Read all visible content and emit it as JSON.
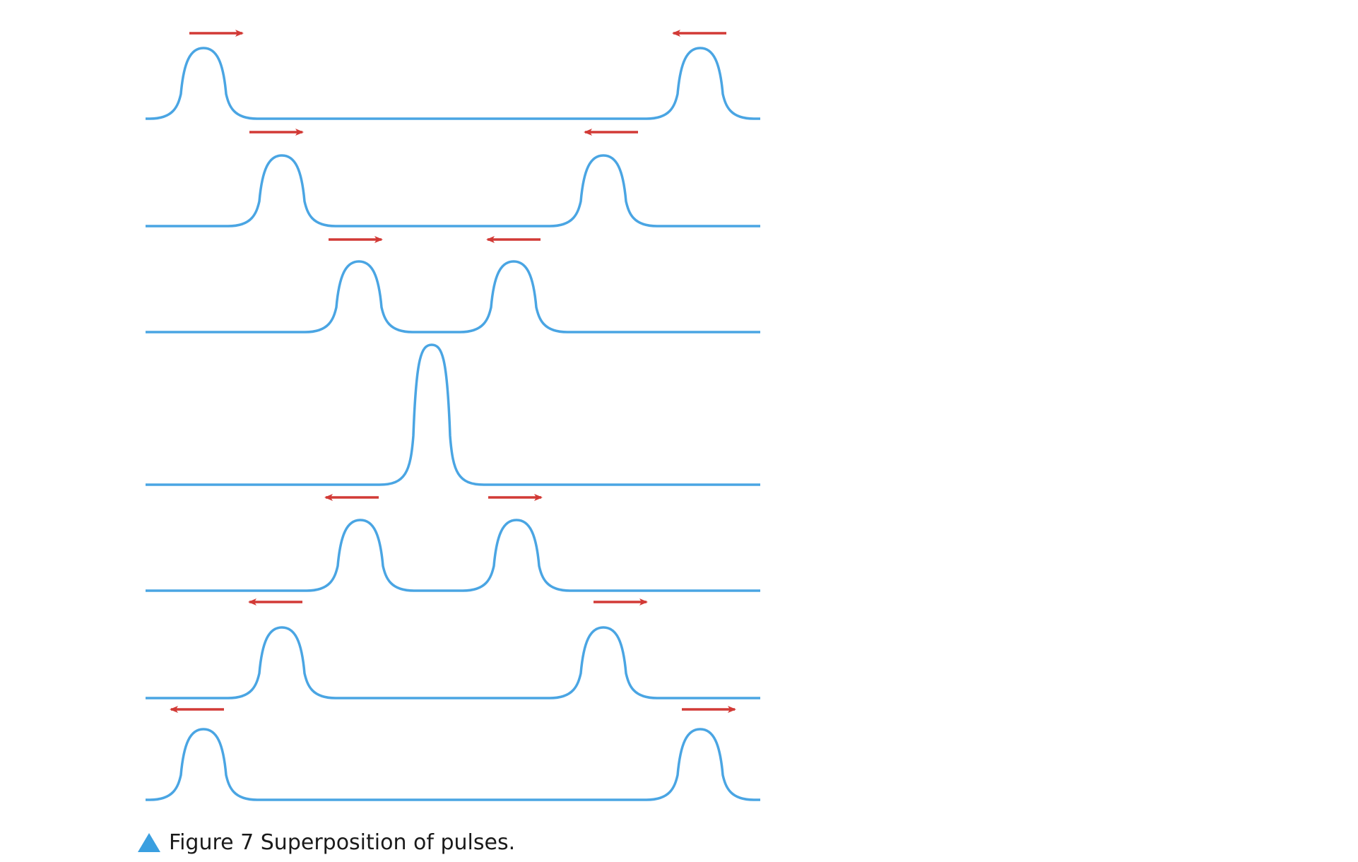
{
  "caption": {
    "marker": "triangle-marker",
    "text": "Figure 7 Superposition of pulses."
  },
  "colors": {
    "string": "#4aa5e3",
    "arrow": "#d23a36",
    "marker": "#3a9fe0",
    "text": "#1a1a1a"
  },
  "frames": [
    {
      "pulses": [
        {
          "direction": "right"
        },
        {
          "direction": "left"
        }
      ]
    },
    {
      "pulses": [
        {
          "direction": "right"
        },
        {
          "direction": "left"
        }
      ]
    },
    {
      "pulses": [
        {
          "direction": "right"
        },
        {
          "direction": "left"
        }
      ]
    },
    {
      "pulses": [
        {
          "combined": true
        }
      ]
    },
    {
      "pulses": [
        {
          "direction": "left"
        },
        {
          "direction": "right"
        }
      ]
    },
    {
      "pulses": [
        {
          "direction": "left"
        },
        {
          "direction": "right"
        }
      ]
    },
    {
      "pulses": [
        {
          "direction": "left"
        },
        {
          "direction": "right"
        }
      ]
    }
  ]
}
